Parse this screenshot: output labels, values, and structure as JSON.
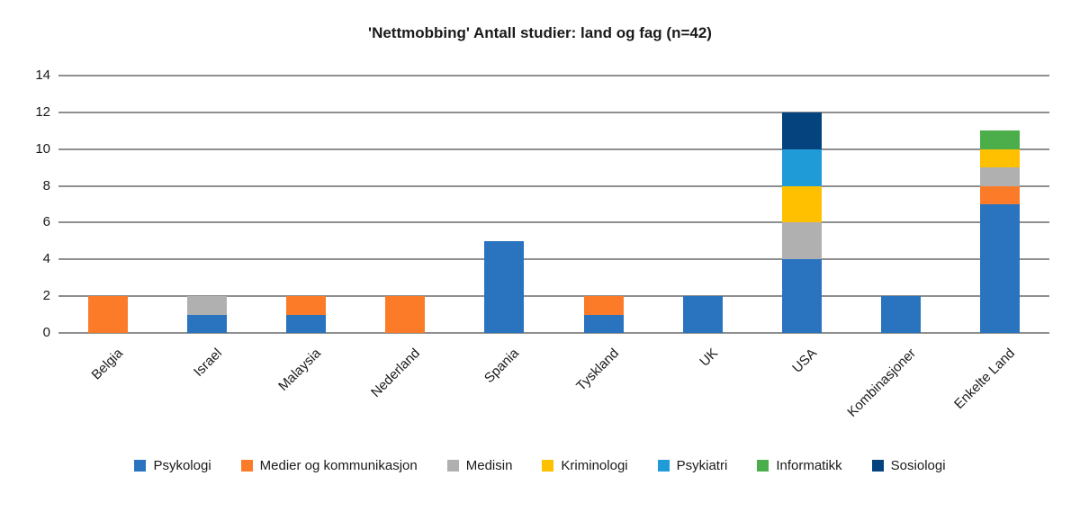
{
  "title": "'Nettmobbing' Antall studier: land og fag (n=42)",
  "chart_data": {
    "type": "bar",
    "stacked": true,
    "title": "'Nettmobbing' Antall studier: land og fag (n=42)",
    "categories": [
      "Belgia",
      "Israel",
      "Malaysia",
      "Nederland",
      "Spania",
      "Tyskland",
      "UK",
      "USA",
      "Kombinasjoner",
      "Enkelte Land"
    ],
    "series": [
      {
        "name": "Psykologi",
        "color": "#2A73BE",
        "values": [
          0,
          1,
          1,
          0,
          5,
          1,
          2,
          4,
          2,
          7
        ]
      },
      {
        "name": "Medier og kommunikasjon",
        "color": "#FB7B28",
        "values": [
          2,
          0,
          1,
          2,
          0,
          1,
          0,
          0,
          0,
          1
        ]
      },
      {
        "name": "Medisin",
        "color": "#B0B0B1",
        "values": [
          0,
          1,
          0,
          0,
          0,
          0,
          0,
          2,
          0,
          1
        ]
      },
      {
        "name": "Kriminologi",
        "color": "#FFC000",
        "values": [
          0,
          0,
          0,
          0,
          0,
          0,
          0,
          2,
          0,
          1
        ]
      },
      {
        "name": "Psykiatri",
        "color": "#1F9BD8",
        "values": [
          0,
          0,
          0,
          0,
          0,
          0,
          0,
          2,
          0,
          0
        ]
      },
      {
        "name": "Informatikk",
        "color": "#4CAE4A",
        "values": [
          0,
          0,
          0,
          0,
          0,
          0,
          0,
          0,
          0,
          1
        ]
      },
      {
        "name": "Sosiologi",
        "color": "#04437E",
        "values": [
          0,
          0,
          0,
          0,
          0,
          0,
          0,
          2,
          0,
          0
        ]
      }
    ],
    "totals": {
      "Belgia": 2,
      "Israel": 2,
      "Malaysia": 2,
      "Nederland": 2,
      "Spania": 5,
      "Tyskland": 2,
      "UK": 2,
      "USA": 12,
      "Kombinasjoner": 2,
      "Enkelte Land": 11,
      "n": 42
    },
    "xlabel": "",
    "ylabel": "",
    "ylim": [
      0,
      14
    ],
    "yticks": [
      0,
      2,
      4,
      6,
      8,
      10,
      12,
      14
    ],
    "grid": true,
    "grid_color": "#8F8F8F",
    "xlabel_rotation_deg": -45,
    "legend_position": "bottom"
  }
}
